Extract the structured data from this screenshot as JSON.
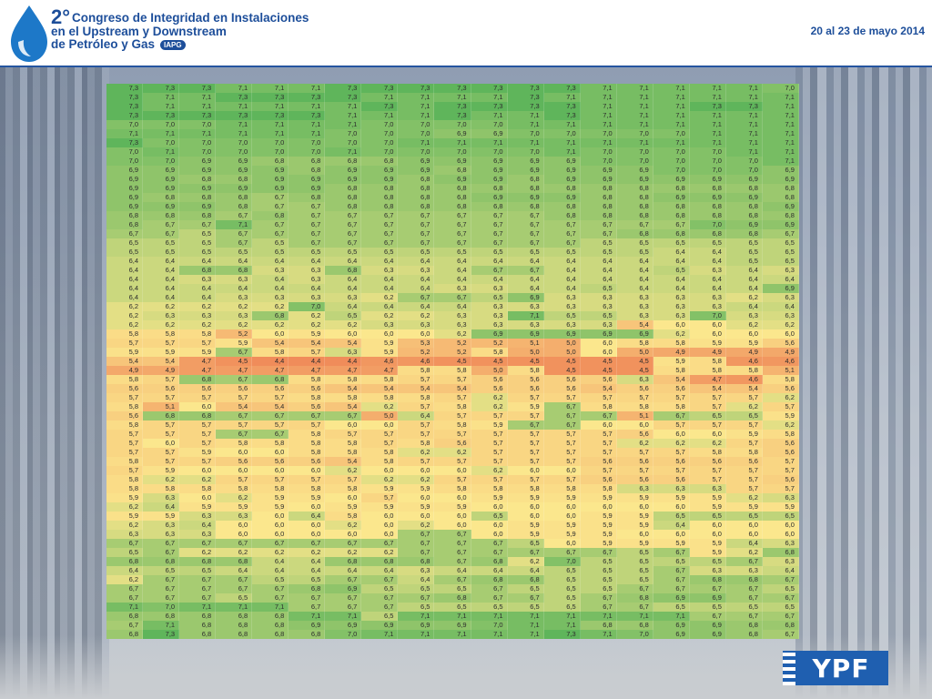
{
  "header": {
    "number": "2°",
    "title_lines": [
      "Congreso de Integridad en Instalaciones",
      "en el Upstream y Downstream",
      "de Petróleo y Gas"
    ],
    "badge": "IAPG",
    "date": "20 al 23 de mayo 2014"
  },
  "footer": {
    "logo_text": "YPF"
  },
  "colors": {
    "low": "#f08c5a",
    "mid": "#fbe78d",
    "high": "#5fb55b"
  },
  "chart_data": {
    "type": "heatmap",
    "color_scale": {
      "min": 4.4,
      "mid": 6.0,
      "max": 7.3
    },
    "rows": [
      [
        "7,3",
        "7,3",
        "7,3",
        "7,1",
        "7,1",
        "7,1",
        "7,3",
        "7,3",
        "7,3",
        "7,3",
        "7,3",
        "7,3",
        "7,3",
        "7,1",
        "7,1",
        "7,1",
        "7,1",
        "7,1",
        "7,0"
      ],
      [
        "7,3",
        "7,1",
        "7,1",
        "7,3",
        "7,3",
        "7,3",
        "7,3",
        "7,1",
        "7,1",
        "7,1",
        "7,1",
        "7,3",
        "7,1",
        "7,1",
        "7,1",
        "7,1",
        "7,1",
        "7,1",
        "7,1"
      ],
      [
        "7,3",
        "7,1",
        "7,1",
        "7,1",
        "7,1",
        "7,1",
        "7,1",
        "7,3",
        "7,1",
        "7,3",
        "7,3",
        "7,3",
        "7,3",
        "7,1",
        "7,1",
        "7,1",
        "7,3",
        "7,3",
        "7,1"
      ],
      [
        "7,3",
        "7,3",
        "7,3",
        "7,3",
        "7,3",
        "7,3",
        "7,1",
        "7,1",
        "7,1",
        "7,3",
        "7,1",
        "7,1",
        "7,3",
        "7,1",
        "7,1",
        "7,1",
        "7,1",
        "7,1",
        "7,1"
      ],
      [
        "7,0",
        "7,0",
        "7,0",
        "7,1",
        "7,1",
        "7,1",
        "7,1",
        "7,0",
        "7,0",
        "7,0",
        "7,0",
        "7,1",
        "7,1",
        "7,1",
        "7,1",
        "7,1",
        "7,1",
        "7,1",
        "7,1"
      ],
      [
        "7,1",
        "7,1",
        "7,1",
        "7,1",
        "7,1",
        "7,1",
        "7,0",
        "7,0",
        "7,0",
        "6,9",
        "6,9",
        "7,0",
        "7,0",
        "7,0",
        "7,0",
        "7,0",
        "7,1",
        "7,1",
        "7,1"
      ],
      [
        "7,3",
        "7,0",
        "7,0",
        "7,0",
        "7,0",
        "7,0",
        "7,0",
        "7,0",
        "7,1",
        "7,1",
        "7,1",
        "7,1",
        "7,1",
        "7,1",
        "7,1",
        "7,1",
        "7,1",
        "7,1",
        "7,1"
      ],
      [
        "7,0",
        "7,1",
        "7,0",
        "7,0",
        "7,0",
        "7,0",
        "7,1",
        "7,0",
        "7,0",
        "7,0",
        "7,0",
        "7,0",
        "7,1",
        "7,0",
        "7,0",
        "7,0",
        "7,0",
        "7,1",
        "7,1"
      ],
      [
        "7,0",
        "7,0",
        "6,9",
        "6,9",
        "6,8",
        "6,8",
        "6,8",
        "6,8",
        "6,9",
        "6,9",
        "6,9",
        "6,9",
        "6,9",
        "7,0",
        "7,0",
        "7,0",
        "7,0",
        "7,0",
        "7,1"
      ],
      [
        "6,9",
        "6,9",
        "6,9",
        "6,9",
        "6,9",
        "6,8",
        "6,9",
        "6,9",
        "6,9",
        "6,8",
        "6,9",
        "6,9",
        "6,9",
        "6,9",
        "6,9",
        "7,0",
        "7,0",
        "7,0",
        "6,9"
      ],
      [
        "6,9",
        "6,9",
        "6,8",
        "6,8",
        "6,9",
        "6,9",
        "6,9",
        "6,9",
        "6,8",
        "6,9",
        "6,9",
        "6,8",
        "6,9",
        "6,9",
        "6,9",
        "6,9",
        "6,9",
        "6,9",
        "6,9"
      ],
      [
        "6,9",
        "6,9",
        "6,9",
        "6,9",
        "6,9",
        "6,9",
        "6,8",
        "6,8",
        "6,8",
        "6,8",
        "6,8",
        "6,8",
        "6,8",
        "6,8",
        "6,8",
        "6,8",
        "6,8",
        "6,8",
        "6,8"
      ],
      [
        "6,9",
        "6,8",
        "6,8",
        "6,8",
        "6,7",
        "6,8",
        "6,8",
        "6,8",
        "6,8",
        "6,8",
        "6,9",
        "6,9",
        "6,9",
        "6,8",
        "6,8",
        "6,9",
        "6,9",
        "6,9",
        "6,8"
      ],
      [
        "6,9",
        "6,9",
        "6,9",
        "6,8",
        "6,7",
        "6,7",
        "6,8",
        "6,8",
        "6,8",
        "6,8",
        "6,8",
        "6,8",
        "6,8",
        "6,8",
        "6,8",
        "6,8",
        "6,8",
        "6,8",
        "6,9"
      ],
      [
        "6,8",
        "6,8",
        "6,8",
        "6,7",
        "6,8",
        "6,7",
        "6,7",
        "6,7",
        "6,7",
        "6,7",
        "6,7",
        "6,7",
        "6,8",
        "6,8",
        "6,8",
        "6,8",
        "6,8",
        "6,8",
        "6,8"
      ],
      [
        "6,8",
        "6,7",
        "6,7",
        "7,1",
        "6,7",
        "6,7",
        "6,7",
        "6,7",
        "6,7",
        "6,7",
        "6,7",
        "6,7",
        "6,7",
        "6,7",
        "6,7",
        "6,7",
        "7,0",
        "6,9",
        "6,9"
      ],
      [
        "6,7",
        "6,7",
        "6,5",
        "6,7",
        "6,7",
        "6,7",
        "6,7",
        "6,7",
        "6,7",
        "6,7",
        "6,7",
        "6,7",
        "6,7",
        "6,7",
        "6,8",
        "6,8",
        "6,8",
        "6,8",
        "6,7"
      ],
      [
        "6,5",
        "6,5",
        "6,5",
        "6,7",
        "6,5",
        "6,7",
        "6,7",
        "6,7",
        "6,7",
        "6,7",
        "6,7",
        "6,7",
        "6,7",
        "6,5",
        "6,5",
        "6,5",
        "6,5",
        "6,5",
        "6,5"
      ],
      [
        "6,5",
        "6,5",
        "6,5",
        "6,5",
        "6,5",
        "6,5",
        "6,5",
        "6,5",
        "6,5",
        "6,5",
        "6,5",
        "6,5",
        "6,5",
        "6,5",
        "6,5",
        "6,4",
        "6,4",
        "6,5",
        "6,5"
      ],
      [
        "6,4",
        "6,4",
        "6,4",
        "6,4",
        "6,4",
        "6,4",
        "6,4",
        "6,4",
        "6,4",
        "6,4",
        "6,4",
        "6,4",
        "6,4",
        "6,4",
        "6,4",
        "6,4",
        "6,4",
        "6,5",
        "6,5"
      ],
      [
        "6,4",
        "6,4",
        "6,8",
        "6,8",
        "6,3",
        "6,3",
        "6,8",
        "6,3",
        "6,3",
        "6,4",
        "6,7",
        "6,7",
        "6,4",
        "6,4",
        "6,4",
        "6,5",
        "6,3",
        "6,4",
        "6,3"
      ],
      [
        "6,4",
        "6,4",
        "6,3",
        "6,3",
        "6,4",
        "6,3",
        "6,4",
        "6,4",
        "6,4",
        "6,4",
        "6,4",
        "6,4",
        "6,4",
        "6,4",
        "6,4",
        "6,4",
        "6,4",
        "6,4",
        "6,4"
      ],
      [
        "6,4",
        "6,4",
        "6,4",
        "6,4",
        "6,4",
        "6,4",
        "6,4",
        "6,4",
        "6,4",
        "6,3",
        "6,3",
        "6,4",
        "6,4",
        "6,5",
        "6,4",
        "6,4",
        "6,4",
        "6,4",
        "6,9"
      ],
      [
        "6,4",
        "6,4",
        "6,4",
        "6,3",
        "6,3",
        "6,3",
        "6,3",
        "6,2",
        "6,7",
        "6,7",
        "6,5",
        "6,9",
        "6,3",
        "6,3",
        "6,3",
        "6,3",
        "6,3",
        "6,2",
        "6,3"
      ],
      [
        "6,2",
        "6,2",
        "6,2",
        "6,2",
        "6,2",
        "7,0",
        "6,4",
        "6,4",
        "6,4",
        "6,4",
        "6,3",
        "6,3",
        "6,3",
        "6,3",
        "6,3",
        "6,3",
        "6,3",
        "6,4",
        "6,4"
      ],
      [
        "6,2",
        "6,3",
        "6,3",
        "6,3",
        "6,8",
        "6,2",
        "6,5",
        "6,2",
        "6,2",
        "6,3",
        "6,3",
        "7,1",
        "6,5",
        "6,5",
        "6,3",
        "6,3",
        "7,0",
        "6,3",
        "6,3"
      ],
      [
        "6,2",
        "6,2",
        "6,2",
        "6,2",
        "6,2",
        "6,2",
        "6,2",
        "6,3",
        "6,3",
        "6,3",
        "6,3",
        "6,3",
        "6,3",
        "6,3",
        "5,4",
        "6,0",
        "6,0",
        "6,2",
        "6,2"
      ],
      [
        "5,8",
        "5,8",
        "5,8",
        "5,2",
        "6,0",
        "5,9",
        "6,0",
        "6,0",
        "6,0",
        "6,2",
        "6,9",
        "6,9",
        "6,9",
        "6,9",
        "6,9",
        "6,2",
        "6,0",
        "6,0",
        "6,0"
      ],
      [
        "5,7",
        "5,7",
        "5,7",
        "5,9",
        "5,4",
        "5,4",
        "5,4",
        "5,9",
        "5,3",
        "5,2",
        "5,2",
        "5,1",
        "5,0",
        "6,0",
        "5,8",
        "5,8",
        "5,9",
        "5,9",
        "5,6"
      ],
      [
        "5,9",
        "5,9",
        "5,9",
        "6,7",
        "5,8",
        "5,7",
        "6,3",
        "5,9",
        "5,2",
        "5,2",
        "5,8",
        "5,0",
        "5,0",
        "6,0",
        "5,0",
        "4,9",
        "4,9",
        "4,9",
        "4,9"
      ],
      [
        "5,4",
        "5,4",
        "4,7",
        "4,5",
        "4,4",
        "4,4",
        "4,4",
        "4,6",
        "4,6",
        "4,5",
        "4,5",
        "4,5",
        "4,5",
        "4,5",
        "4,5",
        "5,9",
        "5,8",
        "4,6",
        "4,6"
      ],
      [
        "4,9",
        "4,9",
        "4,7",
        "4,7",
        "4,7",
        "4,7",
        "4,7",
        "4,7",
        "5,8",
        "5,8",
        "5,0",
        "5,8",
        "4,5",
        "4,5",
        "4,5",
        "5,8",
        "5,8",
        "5,8",
        "5,1"
      ],
      [
        "5,8",
        "5,7",
        "6,8",
        "6,7",
        "6,8",
        "5,8",
        "5,8",
        "5,8",
        "5,7",
        "5,7",
        "5,6",
        "5,6",
        "5,6",
        "5,6",
        "6,3",
        "5,4",
        "4,7",
        "4,6",
        "5,8"
      ],
      [
        "5,6",
        "5,6",
        "5,6",
        "5,6",
        "5,6",
        "5,6",
        "5,4",
        "5,4",
        "5,4",
        "5,4",
        "5,6",
        "5,6",
        "5,6",
        "5,4",
        "5,6",
        "5,6",
        "5,4",
        "5,4",
        "5,6"
      ],
      [
        "5,7",
        "5,7",
        "5,7",
        "5,7",
        "5,7",
        "5,8",
        "5,8",
        "5,8",
        "5,8",
        "5,7",
        "6,2",
        "5,7",
        "5,7",
        "5,7",
        "5,7",
        "5,7",
        "5,7",
        "5,7",
        "6,2"
      ],
      [
        "5,8",
        "5,1",
        "6,0",
        "5,4",
        "5,4",
        "5,6",
        "5,4",
        "6,2",
        "5,7",
        "5,8",
        "6,2",
        "5,9",
        "6,7",
        "5,8",
        "5,8",
        "5,8",
        "5,7",
        "6,2",
        "5,7"
      ],
      [
        "5,6",
        "6,8",
        "6,8",
        "6,7",
        "6,7",
        "6,7",
        "6,7",
        "5,0",
        "6,4",
        "5,7",
        "5,7",
        "5,7",
        "6,7",
        "6,7",
        "5,1",
        "6,7",
        "6,5",
        "6,5",
        "5,9"
      ],
      [
        "5,8",
        "5,7",
        "5,7",
        "5,7",
        "5,7",
        "5,7",
        "6,0",
        "6,0",
        "5,7",
        "5,8",
        "5,9",
        "6,7",
        "6,7",
        "6,0",
        "6,0",
        "5,7",
        "5,7",
        "5,7",
        "6,2"
      ],
      [
        "5,7",
        "5,7",
        "5,7",
        "6,7",
        "6,7",
        "5,8",
        "5,7",
        "5,7",
        "5,7",
        "5,7",
        "5,7",
        "5,7",
        "5,7",
        "5,7",
        "5,6",
        "6,0",
        "6,0",
        "5,9",
        "5,8"
      ],
      [
        "5,7",
        "6,0",
        "5,7",
        "5,8",
        "5,8",
        "5,8",
        "5,8",
        "5,7",
        "5,8",
        "5,6",
        "5,7",
        "5,7",
        "5,7",
        "5,7",
        "6,2",
        "6,2",
        "6,2",
        "5,7",
        "5,6"
      ],
      [
        "5,7",
        "5,7",
        "5,9",
        "6,0",
        "6,0",
        "5,8",
        "5,8",
        "5,8",
        "6,2",
        "6,2",
        "5,7",
        "5,7",
        "5,7",
        "5,7",
        "5,7",
        "5,7",
        "5,8",
        "5,8",
        "5,6"
      ],
      [
        "5,8",
        "5,7",
        "5,7",
        "5,6",
        "5,6",
        "5,6",
        "5,4",
        "5,8",
        "5,7",
        "5,7",
        "5,7",
        "5,7",
        "5,7",
        "5,6",
        "5,6",
        "5,6",
        "5,6",
        "5,6",
        "5,7"
      ],
      [
        "5,7",
        "5,9",
        "6,0",
        "6,0",
        "6,0",
        "6,0",
        "6,2",
        "6,0",
        "6,0",
        "6,0",
        "6,2",
        "6,0",
        "6,0",
        "5,7",
        "5,7",
        "5,7",
        "5,7",
        "5,7",
        "5,7"
      ],
      [
        "5,8",
        "6,2",
        "6,2",
        "5,7",
        "5,7",
        "5,7",
        "5,7",
        "6,2",
        "6,2",
        "5,7",
        "5,7",
        "5,7",
        "5,7",
        "5,6",
        "5,6",
        "5,6",
        "5,7",
        "5,7",
        "5,6"
      ],
      [
        "5,8",
        "5,8",
        "5,8",
        "5,8",
        "5,8",
        "5,8",
        "5,8",
        "5,9",
        "5,9",
        "5,8",
        "5,8",
        "5,8",
        "5,8",
        "5,8",
        "6,3",
        "6,3",
        "6,3",
        "5,7",
        "5,7"
      ],
      [
        "5,9",
        "6,3",
        "6,0",
        "6,2",
        "5,9",
        "5,9",
        "6,0",
        "5,7",
        "6,0",
        "6,0",
        "5,9",
        "5,9",
        "5,9",
        "5,9",
        "5,9",
        "5,9",
        "5,9",
        "6,2",
        "6,3"
      ],
      [
        "6,2",
        "6,4",
        "5,9",
        "5,9",
        "5,9",
        "6,0",
        "5,9",
        "5,9",
        "5,9",
        "5,9",
        "6,0",
        "6,0",
        "6,0",
        "6,0",
        "6,0",
        "6,0",
        "5,9",
        "5,9",
        "5,9"
      ],
      [
        "5,9",
        "5,9",
        "6,3",
        "6,3",
        "6,0",
        "6,4",
        "5,8",
        "6,0",
        "6,0",
        "6,0",
        "6,5",
        "6,0",
        "6,0",
        "5,9",
        "5,9",
        "6,5",
        "6,5",
        "6,5",
        "6,5"
      ],
      [
        "6,2",
        "6,3",
        "6,4",
        "6,0",
        "6,0",
        "6,0",
        "6,2",
        "6,0",
        "6,2",
        "6,0",
        "6,0",
        "5,9",
        "5,9",
        "5,9",
        "5,9",
        "6,4",
        "6,0",
        "6,0",
        "6,0"
      ],
      [
        "6,3",
        "6,3",
        "6,3",
        "6,0",
        "6,0",
        "6,0",
        "6,0",
        "6,0",
        "6,7",
        "6,7",
        "6,0",
        "5,9",
        "5,9",
        "5,9",
        "6,0",
        "6,0",
        "6,0",
        "6,0",
        "6,0"
      ],
      [
        "6,7",
        "6,7",
        "6,7",
        "6,7",
        "6,7",
        "6,7",
        "6,7",
        "6,7",
        "6,7",
        "6,7",
        "6,7",
        "6,5",
        "6,0",
        "5,9",
        "5,9",
        "5,9",
        "5,9",
        "6,4",
        "6,3"
      ],
      [
        "6,5",
        "6,7",
        "6,2",
        "6,2",
        "6,2",
        "6,2",
        "6,2",
        "6,2",
        "6,7",
        "6,7",
        "6,7",
        "6,7",
        "6,7",
        "6,7",
        "6,5",
        "6,7",
        "5,9",
        "6,2",
        "6,8"
      ],
      [
        "6,8",
        "6,8",
        "6,8",
        "6,8",
        "6,4",
        "6,4",
        "6,8",
        "6,8",
        "6,8",
        "6,7",
        "6,8",
        "6,2",
        "7,0",
        "6,5",
        "6,5",
        "6,5",
        "6,5",
        "6,7",
        "6,3"
      ],
      [
        "6,4",
        "6,5",
        "6,5",
        "6,4",
        "6,4",
        "6,4",
        "6,4",
        "6,4",
        "6,3",
        "6,4",
        "6,4",
        "6,4",
        "6,5",
        "6,5",
        "6,5",
        "6,7",
        "6,3",
        "6,3",
        "6,4"
      ],
      [
        "6,2",
        "6,7",
        "6,7",
        "6,7",
        "6,5",
        "6,5",
        "6,7",
        "6,7",
        "6,4",
        "6,7",
        "6,8",
        "6,8",
        "6,5",
        "6,5",
        "6,5",
        "6,7",
        "6,8",
        "6,8",
        "6,7"
      ],
      [
        "6,7",
        "6,7",
        "6,7",
        "6,7",
        "6,7",
        "6,8",
        "6,9",
        "6,5",
        "6,5",
        "6,5",
        "6,7",
        "6,5",
        "6,5",
        "6,5",
        "6,7",
        "6,7",
        "6,7",
        "6,7",
        "6,5"
      ],
      [
        "6,7",
        "6,7",
        "6,7",
        "6,5",
        "6,7",
        "6,7",
        "6,7",
        "6,7",
        "6,7",
        "6,8",
        "6,7",
        "6,7",
        "6,5",
        "6,7",
        "6,8",
        "6,9",
        "6,9",
        "6,7",
        "6,7"
      ],
      [
        "7,1",
        "7,0",
        "7,1",
        "7,1",
        "7,1",
        "6,7",
        "6,7",
        "6,7",
        "6,5",
        "6,5",
        "6,5",
        "6,5",
        "6,5",
        "6,7",
        "6,7",
        "6,5",
        "6,5",
        "6,5",
        "6,5"
      ],
      [
        "6,8",
        "6,8",
        "6,8",
        "6,8",
        "6,8",
        "7,1",
        "7,1",
        "6,5",
        "7,1",
        "7,1",
        "7,1",
        "7,1",
        "7,1",
        "7,1",
        "7,1",
        "7,1",
        "6,7",
        "6,7",
        "6,7"
      ],
      [
        "6,7",
        "7,1",
        "6,8",
        "6,8",
        "6,8",
        "6,9",
        "6,9",
        "6,9",
        "6,9",
        "6,9",
        "7,0",
        "7,1",
        "7,1",
        "6,8",
        "6,8",
        "6,9",
        "6,9",
        "6,8",
        "6,8"
      ],
      [
        "6,8",
        "7,3",
        "6,8",
        "6,8",
        "6,8",
        "6,8",
        "7,0",
        "7,1",
        "7,1",
        "7,1",
        "7,1",
        "7,1",
        "7,3",
        "7,1",
        "7,0",
        "6,9",
        "6,9",
        "6,8",
        "6,7"
      ]
    ]
  }
}
